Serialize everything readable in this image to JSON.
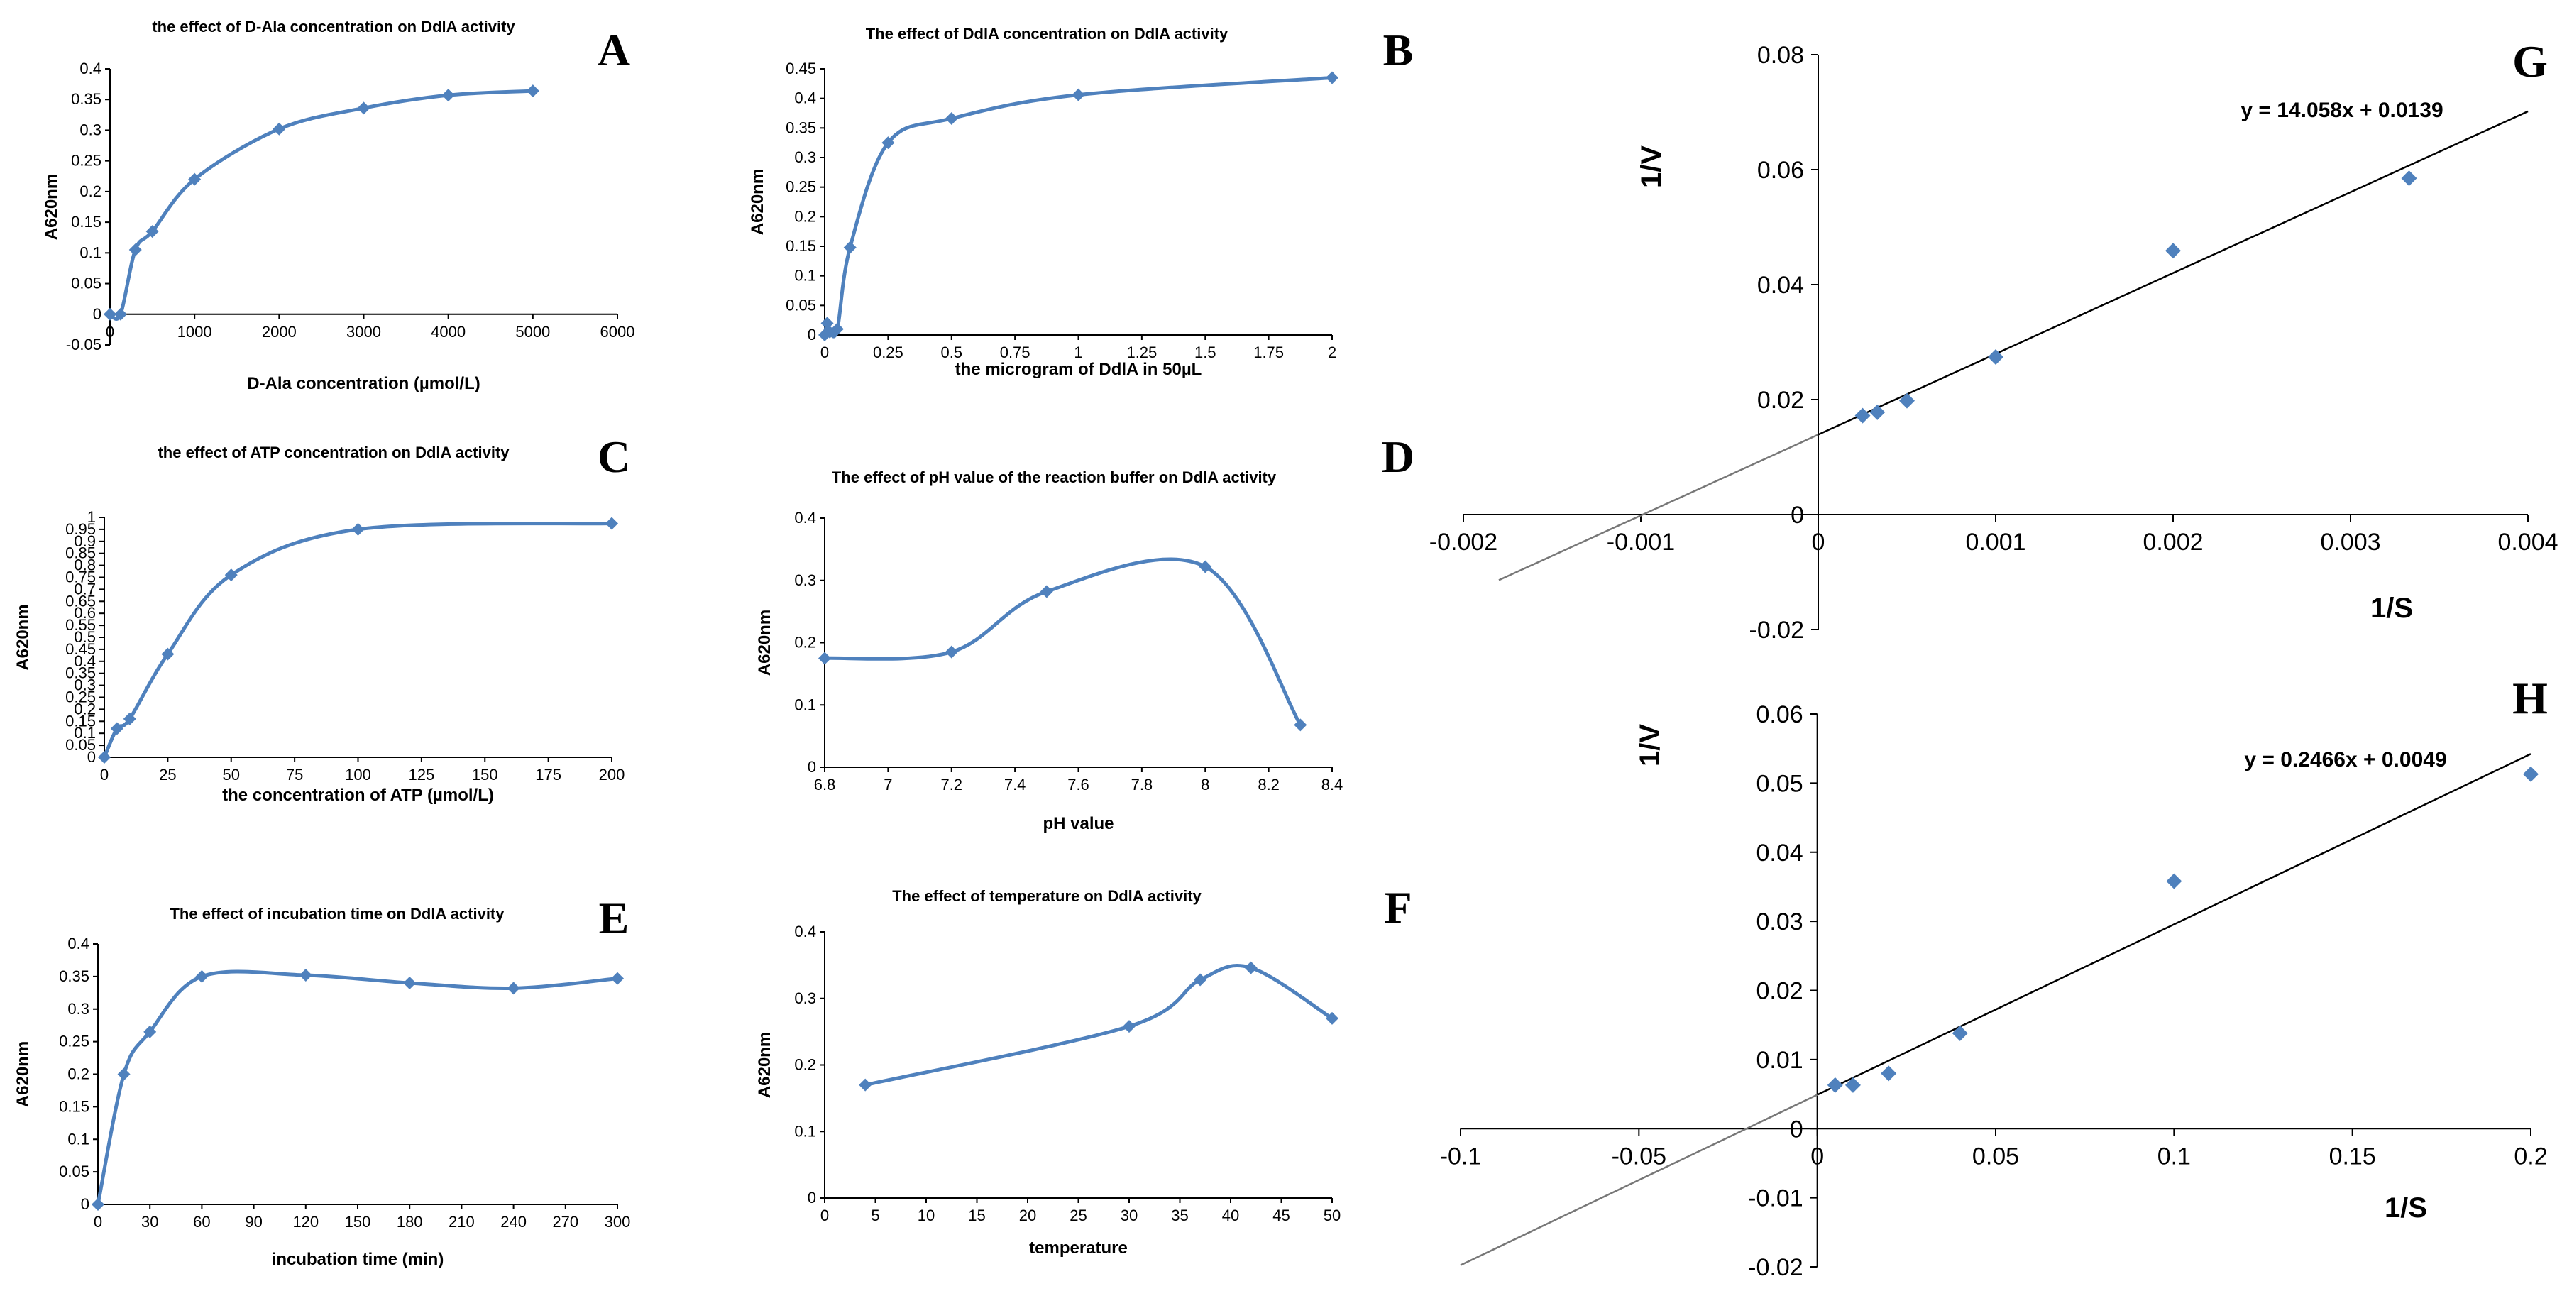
{
  "chart_data": [
    {
      "id": "A",
      "type": "line",
      "letter": "A",
      "title": "the effect of D-Ala concentration on DdlA activity",
      "xlabel": "D-Ala concentration (µmol/L)",
      "ylabel": "A620nm",
      "xlim": [
        0,
        6000
      ],
      "ylim": [
        -0.05,
        0.4
      ],
      "xticks": [
        0,
        1000,
        2000,
        3000,
        4000,
        5000,
        6000
      ],
      "xtick_labels": [
        "0",
        "1000",
        "2000",
        "3000",
        "4000",
        "5000",
        "6000"
      ],
      "yticks": [
        -0.05,
        0,
        0.05,
        0.1,
        0.15,
        0.2,
        0.25,
        0.3,
        0.35,
        0.4
      ],
      "ytick_labels": [
        "-0.05",
        "0",
        "0.05",
        "0.1",
        "0.15",
        "0.2",
        "0.25",
        "0.3",
        "0.35",
        "0.4"
      ],
      "x": [
        0,
        125,
        300,
        500,
        1000,
        2000,
        3000,
        4000,
        5000
      ],
      "y": [
        0,
        0,
        0.105,
        0.135,
        0.22,
        0.302,
        0.336,
        0.357,
        0.364
      ]
    },
    {
      "id": "B",
      "type": "line",
      "letter": "B",
      "title": "The effect of DdlA concentration on DdlA activity",
      "xlabel": "the microgram of DdlA in 50µL",
      "ylabel": "A620nm",
      "xlim": [
        0,
        2
      ],
      "ylim": [
        0,
        0.45
      ],
      "xticks": [
        0,
        0.25,
        0.5,
        0.75,
        1,
        1.25,
        1.5,
        1.75,
        2
      ],
      "xtick_labels": [
        "0",
        "0.25",
        "0.5",
        "0.75",
        "1",
        "1.25",
        "1.5",
        "1.75",
        "2"
      ],
      "yticks": [
        0,
        0.05,
        0.1,
        0.15,
        0.2,
        0.25,
        0.3,
        0.35,
        0.4,
        0.45
      ],
      "ytick_labels": [
        "0",
        "0.05",
        "0.1",
        "0.15",
        "0.2",
        "0.25",
        "0.3",
        "0.35",
        "0.4",
        "0.45"
      ],
      "x": [
        0,
        0.01,
        0.02,
        0.05,
        0.1,
        0.25,
        0.5,
        1,
        2
      ],
      "y": [
        0,
        0.02,
        0.005,
        0.01,
        0.148,
        0.325,
        0.366,
        0.406,
        0.435
      ]
    },
    {
      "id": "C",
      "type": "line",
      "letter": "C",
      "title": "the effect of ATP concentration on DdlA activity",
      "xlabel": "the concentration of ATP (µmol/L)",
      "ylabel": "A620nm",
      "xlim": [
        0,
        200
      ],
      "ylim": [
        0,
        1
      ],
      "xticks": [
        0,
        25,
        50,
        75,
        100,
        125,
        150,
        175,
        200
      ],
      "xtick_labels": [
        "0",
        "25",
        "50",
        "75",
        "100",
        "125",
        "150",
        "175",
        "200"
      ],
      "yticks": [
        0,
        0.05,
        0.1,
        0.15,
        0.2,
        0.25,
        0.3,
        0.35,
        0.4,
        0.45,
        0.5,
        0.55,
        0.6,
        0.65,
        0.7,
        0.75,
        0.8,
        0.85,
        0.9,
        0.95,
        1
      ],
      "ytick_labels": [
        "0",
        "0.05",
        "0.1",
        "0.15",
        "0.2",
        "0.25",
        "0.3",
        "0.35",
        "0.4",
        "0.45",
        "0.5",
        "0.55",
        "0.6",
        "0.65",
        "0.7",
        "0.75",
        "0.8",
        "0.85",
        "0.9",
        "0.95",
        "1"
      ],
      "x": [
        0,
        5,
        10,
        25,
        50,
        100,
        200
      ],
      "y": [
        0,
        0.12,
        0.16,
        0.43,
        0.76,
        0.95,
        0.975
      ]
    },
    {
      "id": "D",
      "type": "line",
      "letter": "D",
      "title": "The effect of pH value of the reaction buffer on DdlA activity",
      "xlabel": "pH value",
      "ylabel": "A620nm",
      "xlim": [
        6.8,
        8.4
      ],
      "ylim": [
        0,
        0.4
      ],
      "xticks": [
        6.8,
        7,
        7.2,
        7.4,
        7.6,
        7.8,
        8,
        8.2,
        8.4
      ],
      "xtick_labels": [
        "6.8",
        "7",
        "7.2",
        "7.4",
        "7.6",
        "7.8",
        "8",
        "8.2",
        "8.4"
      ],
      "yticks": [
        0,
        0.1,
        0.2,
        0.3,
        0.4
      ],
      "ytick_labels": [
        "0",
        "0.1",
        "0.2",
        "0.3",
        "0.4"
      ],
      "x": [
        6.8,
        7.2,
        7.5,
        8.0,
        8.3
      ],
      "y": [
        0.175,
        0.185,
        0.282,
        0.322,
        0.068
      ]
    },
    {
      "id": "E",
      "type": "line",
      "letter": "E",
      "title": "The effect of incubation time on DdlA activity",
      "xlabel": "incubation time (min)",
      "ylabel": "A620nm",
      "xlim": [
        0,
        300
      ],
      "ylim": [
        0,
        0.4
      ],
      "xticks": [
        0,
        30,
        60,
        90,
        120,
        150,
        180,
        210,
        240,
        270,
        300
      ],
      "xtick_labels": [
        "0",
        "30",
        "60",
        "90",
        "120",
        "150",
        "180",
        "210",
        "240",
        "270",
        "300"
      ],
      "yticks": [
        0,
        0.05,
        0.1,
        0.15,
        0.2,
        0.25,
        0.3,
        0.35,
        0.4
      ],
      "ytick_labels": [
        "0",
        "0.05",
        "0.1",
        "0.15",
        "0.2",
        "0.25",
        "0.3",
        "0.35",
        "0.4"
      ],
      "x": [
        0,
        15,
        30,
        60,
        120,
        180,
        240,
        300
      ],
      "y": [
        0,
        0.2,
        0.265,
        0.35,
        0.352,
        0.34,
        0.332,
        0.347
      ]
    },
    {
      "id": "F",
      "type": "line",
      "letter": "F",
      "title": "The effect of temperature on DdlA activity",
      "xlabel": "temperature",
      "ylabel": "A620nm",
      "xlim": [
        0,
        50
      ],
      "ylim": [
        0,
        0.4
      ],
      "xticks": [
        0,
        5,
        10,
        15,
        20,
        25,
        30,
        35,
        40,
        45,
        50
      ],
      "xtick_labels": [
        "0",
        "5",
        "10",
        "15",
        "20",
        "25",
        "30",
        "35",
        "40",
        "45",
        "50"
      ],
      "yticks": [
        0,
        0.1,
        0.2,
        0.3,
        0.4
      ],
      "ytick_labels": [
        "0",
        "0.1",
        "0.2",
        "0.3",
        "0.4"
      ],
      "x": [
        4,
        30,
        37,
        42,
        50
      ],
      "y": [
        0.17,
        0.258,
        0.328,
        0.346,
        0.27
      ]
    },
    {
      "id": "G",
      "type": "scatter",
      "letter": "G",
      "xlabel": "1/S",
      "ylabel": "1/V",
      "xlim": [
        -0.002,
        0.004
      ],
      "ylim": [
        -0.02,
        0.08
      ],
      "xticks": [
        -0.002,
        -0.001,
        0,
        0.001,
        0.002,
        0.003,
        0.004
      ],
      "xtick_labels": [
        "-0.002",
        "-0.001",
        "0",
        "0.001",
        "0.002",
        "0.003",
        "0.004"
      ],
      "yticks": [
        -0.02,
        0,
        0.02,
        0.04,
        0.06,
        0.08
      ],
      "ytick_labels": [
        "-0.02",
        "0",
        "0.02",
        "0.04",
        "0.06",
        "0.08"
      ],
      "x": [
        0.00025,
        0.000333,
        0.0005,
        0.001,
        0.002,
        0.00333
      ],
      "y": [
        0.0172,
        0.0178,
        0.0198,
        0.0274,
        0.0459,
        0.0585
      ],
      "trendline": {
        "slope": 14.058,
        "intercept": 0.0139,
        "x_range": [
          -0.0018,
          0.004
        ]
      },
      "equation": "y = 14.058x + 0.0139"
    },
    {
      "id": "H",
      "type": "scatter",
      "letter": "H",
      "xlabel": "1/S",
      "ylabel": "1/V",
      "xlim": [
        -0.1,
        0.2
      ],
      "ylim": [
        -0.02,
        0.06
      ],
      "xticks": [
        -0.1,
        -0.05,
        0,
        0.05,
        0.1,
        0.15,
        0.2
      ],
      "xtick_labels": [
        "-0.1",
        "-0.05",
        "0",
        "0.05",
        "0.1",
        "0.15",
        "0.2"
      ],
      "yticks": [
        -0.02,
        -0.01,
        0,
        0.01,
        0.02,
        0.03,
        0.04,
        0.05,
        0.06
      ],
      "ytick_labels": [
        "-0.02",
        "-0.01",
        "0",
        "0.01",
        "0.02",
        "0.03",
        "0.04",
        "0.05",
        "0.06"
      ],
      "x": [
        0.005,
        0.01,
        0.02,
        0.04,
        0.1,
        0.2
      ],
      "y": [
        0.0063,
        0.0063,
        0.008,
        0.0138,
        0.0358,
        0.0513
      ],
      "trendline": {
        "slope": 0.2466,
        "intercept": 0.0049,
        "x_range": [
          -0.1,
          0.2
        ]
      },
      "equation": "y = 0.2466x + 0.0049"
    }
  ]
}
